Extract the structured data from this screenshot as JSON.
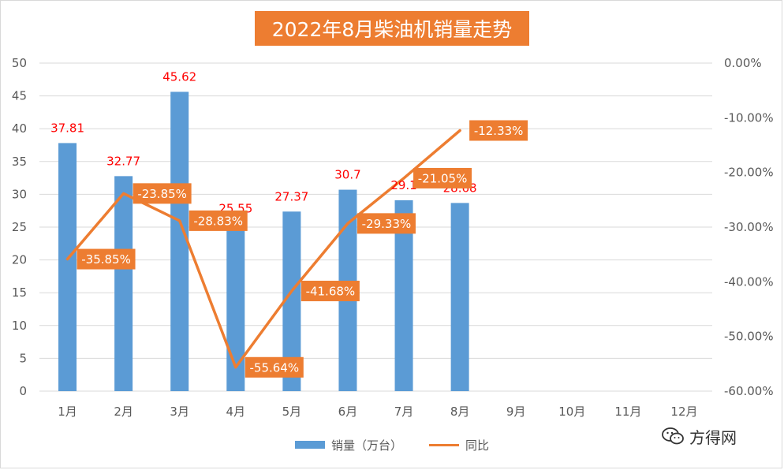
{
  "chart_data": {
    "type": "bar+line",
    "title": "2022年8月柴油机销量走势",
    "categories": [
      "1月",
      "2月",
      "3月",
      "4月",
      "5月",
      "6月",
      "7月",
      "8月",
      "9月",
      "10月",
      "11月",
      "12月"
    ],
    "series": [
      {
        "name": "销量（万台）",
        "type": "bar",
        "axis": "left",
        "color": "#5b9bd5",
        "values": [
          37.81,
          32.77,
          45.62,
          25.55,
          27.37,
          30.7,
          29.1,
          28.68,
          null,
          null,
          null,
          null
        ],
        "labels": [
          "37.81",
          "32.77",
          "45.62",
          "25.55",
          "27.37",
          "30.7",
          "29.1",
          "28.68",
          null,
          null,
          null,
          null
        ]
      },
      {
        "name": "同比",
        "type": "line",
        "axis": "right",
        "color": "#ed7d31",
        "values": [
          -35.85,
          -23.85,
          -28.83,
          -55.64,
          -41.68,
          -29.33,
          -21.05,
          -12.33,
          null,
          null,
          null,
          null
        ],
        "labels": [
          "-35.85%",
          "-23.85%",
          "-28.83%",
          "-55.64%",
          "-41.68%",
          "-29.33%",
          "-21.05%",
          "-12.33%",
          null,
          null,
          null,
          null
        ]
      }
    ],
    "y_left": {
      "min": 0,
      "max": 50,
      "step": 5,
      "ticks": [
        "0",
        "5",
        "10",
        "15",
        "20",
        "25",
        "30",
        "35",
        "40",
        "45",
        "50"
      ]
    },
    "y_right": {
      "min": -60,
      "max": 0,
      "step": 10,
      "ticks": [
        "-60.00%",
        "-50.00%",
        "-40.00%",
        "-30.00%",
        "-20.00%",
        "-10.00%",
        "0.00%"
      ]
    },
    "grid": true,
    "legend_position": "bottom"
  },
  "watermark": {
    "text": "方得网",
    "icon": "wechat-icon"
  },
  "colors": {
    "accent": "#ed7d31",
    "bar": "#5b9bd5",
    "bar_label": "#ff0000",
    "grid": "#d9d9d9"
  }
}
